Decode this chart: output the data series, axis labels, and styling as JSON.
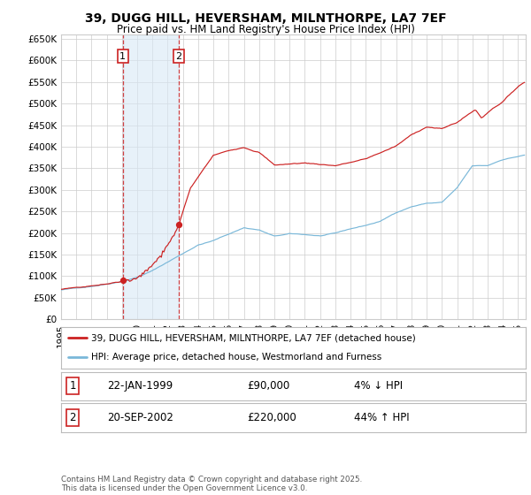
{
  "title_line1": "39, DUGG HILL, HEVERSHAM, MILNTHORPE, LA7 7EF",
  "title_line2": "Price paid vs. HM Land Registry's House Price Index (HPI)",
  "legend_line1": "39, DUGG HILL, HEVERSHAM, MILNTHORPE, LA7 7EF (detached house)",
  "legend_line2": "HPI: Average price, detached house, Westmorland and Furness",
  "footnote": "Contains HM Land Registry data © Crown copyright and database right 2025.\nThis data is licensed under the Open Government Licence v3.0.",
  "purchase1_date": "22-JAN-1999",
  "purchase1_price": "£90,000",
  "purchase1_hpi": "4% ↓ HPI",
  "purchase2_date": "20-SEP-2002",
  "purchase2_price": "£220,000",
  "purchase2_hpi": "44% ↑ HPI",
  "purchase1_x": 1999.056,
  "purchase1_y": 90000,
  "purchase2_x": 2002.722,
  "purchase2_y": 220000,
  "ylim": [
    0,
    660000
  ],
  "xlim_start": 1995.0,
  "xlim_end": 2025.5,
  "hpi_color": "#7ab8d9",
  "price_color": "#cc2222",
  "grid_color": "#cccccc",
  "shade_color": "#d8e8f5",
  "background_color": "#ffffff",
  "hpi_key_years": [
    1995,
    1996,
    1997,
    1998,
    1999,
    2000,
    2001,
    2002,
    2003,
    2004,
    2005,
    2006,
    2007,
    2008,
    2009,
    2010,
    2011,
    2012,
    2013,
    2014,
    2015,
    2016,
    2017,
    2018,
    2019,
    2020,
    2021,
    2022,
    2023,
    2024,
    2025.4
  ],
  "hpi_key_vals": [
    68000,
    72000,
    77000,
    83000,
    90000,
    100000,
    115000,
    135000,
    155000,
    175000,
    185000,
    200000,
    215000,
    210000,
    195000,
    200000,
    198000,
    195000,
    200000,
    210000,
    218000,
    228000,
    248000,
    262000,
    270000,
    272000,
    305000,
    355000,
    355000,
    370000,
    380000
  ],
  "prop_key_years": [
    1995,
    1999.056,
    2002.0,
    2002.722,
    2003.5,
    2005,
    2007,
    2008,
    2009,
    2011,
    2013,
    2015,
    2017,
    2018,
    2019,
    2020,
    2021,
    2022.2,
    2022.6,
    2023.2,
    2024,
    2025.0,
    2025.4
  ],
  "prop_key_vals": [
    68000,
    90000,
    148000,
    220000,
    305000,
    380000,
    400000,
    390000,
    360000,
    365000,
    360000,
    375000,
    405000,
    430000,
    450000,
    445000,
    460000,
    490000,
    470000,
    490000,
    510000,
    545000,
    555000
  ]
}
